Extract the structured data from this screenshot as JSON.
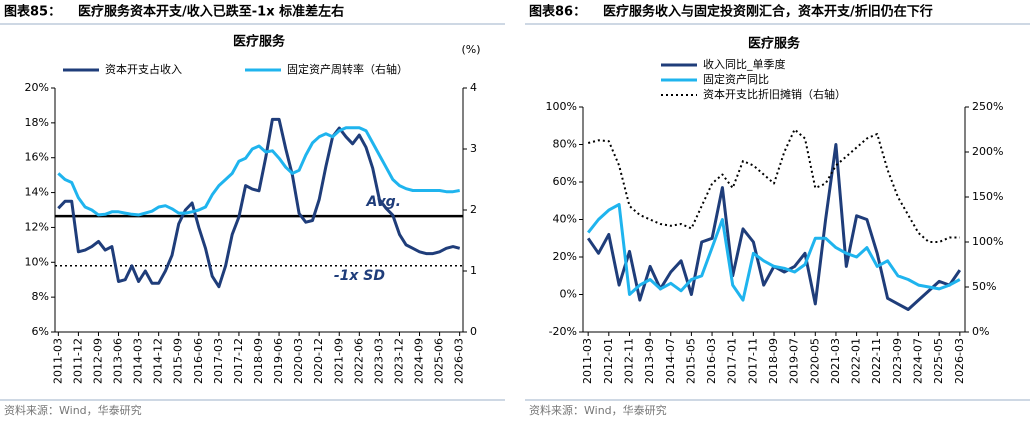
{
  "chart_data": [
    {
      "type": "line",
      "caption_number": "图表85：",
      "caption": "医疗服务资本开支/收入已跌至-1x 标准差左右",
      "title": "医疗服务",
      "source": "资料来源：Wind，华泰研究",
      "y2_label": "(%)",
      "legend": "upper center",
      "categories": [
        "2011-03",
        null,
        null,
        "2011-12",
        null,
        null,
        "2012-09",
        null,
        null,
        "2013-06",
        null,
        null,
        "2014-03",
        null,
        null,
        "2014-12",
        null,
        null,
        "2015-09",
        null,
        null,
        "2016-06",
        null,
        null,
        "2017-03",
        null,
        null,
        "2017-12",
        null,
        null,
        "2018-09",
        null,
        null,
        "2019-06",
        null,
        null,
        "2020-03",
        null,
        null,
        "2020-12",
        null,
        null,
        "2021-09",
        null,
        null,
        "2022-06",
        null,
        null,
        "2023-03",
        null,
        null,
        "2023-12",
        null,
        null,
        "2024-09",
        null,
        null,
        "2025-06",
        null,
        null,
        "2026-03"
      ],
      "series": [
        {
          "name": "资本开支占收入",
          "color": "#1f3d7a",
          "style": "solid",
          "values": [
            13.1,
            13.5,
            13.5,
            10.6,
            10.7,
            10.9,
            11.2,
            10.7,
            10.9,
            8.9,
            9.0,
            9.8,
            8.9,
            9.5,
            8.8,
            8.8,
            9.5,
            10.4,
            12.2,
            13.0,
            13.4,
            12.0,
            10.8,
            9.2,
            8.6,
            9.8,
            11.6,
            12.6,
            14.4,
            14.2,
            14.1,
            16.0,
            18.2,
            18.2,
            16.5,
            15.0,
            12.8,
            12.3,
            12.4,
            13.6,
            15.5,
            17.2,
            17.7,
            17.2,
            16.8,
            17.3,
            16.6,
            15.4,
            13.6,
            13.1,
            12.7,
            11.6,
            11.0,
            10.8,
            10.6,
            10.5,
            10.5,
            10.6,
            10.8,
            10.9,
            10.8
          ]
        },
        {
          "name": "固定资产周转率（右轴）",
          "color": "#1fb4ee",
          "style": "solid",
          "axis": "y2",
          "values": [
            2.6,
            2.5,
            2.45,
            2.2,
            2.05,
            2.0,
            1.92,
            1.93,
            1.97,
            1.97,
            1.95,
            1.93,
            1.92,
            1.95,
            1.98,
            2.05,
            2.07,
            2.02,
            1.95,
            1.95,
            1.97,
            2.0,
            2.05,
            2.25,
            2.4,
            2.5,
            2.6,
            2.8,
            2.85,
            3.0,
            3.05,
            2.95,
            2.97,
            2.85,
            2.7,
            2.6,
            2.65,
            2.9,
            3.1,
            3.2,
            3.25,
            3.2,
            3.3,
            3.35,
            3.35,
            3.35,
            3.3,
            3.1,
            2.9,
            2.7,
            2.5,
            2.4,
            2.35,
            2.32,
            2.32,
            2.32,
            2.32,
            2.32,
            2.3,
            2.3,
            2.32
          ]
        }
      ],
      "reference_lines": [
        {
          "label": "Avg.",
          "value": 12.65,
          "style": "solid"
        },
        {
          "label": "-1x SD",
          "value": 9.8,
          "style": "dotted"
        }
      ],
      "ylim": [
        6,
        20
      ],
      "yticks": [
        {
          "value": 6,
          "label": "6%"
        },
        {
          "value": 8,
          "label": "8%"
        },
        {
          "value": 10,
          "label": "10%"
        },
        {
          "value": 12,
          "label": "12%"
        },
        {
          "value": 14,
          "label": "14%"
        },
        {
          "value": 16,
          "label": "16%"
        },
        {
          "value": 18,
          "label": "18%"
        },
        {
          "value": 20,
          "label": "20%"
        }
      ],
      "y2lim": [
        0,
        4
      ],
      "y2ticks": [
        0,
        1,
        2,
        3,
        4
      ],
      "grid": false
    },
    {
      "type": "line",
      "caption_number": "图表86：",
      "caption": "医疗服务收入与固定投资刚汇合，资本开支/折旧仍在下行",
      "title": "医疗服务",
      "source": "资料来源：Wind，华泰研究",
      "legend": "upper left",
      "categories": [
        "2011-03",
        null,
        "2012-01",
        null,
        "2012-11",
        null,
        "2013-09",
        null,
        "2014-07",
        null,
        "2015-05",
        null,
        "2016-03",
        null,
        "2017-01",
        null,
        "2017-11",
        null,
        "2018-09",
        null,
        "2019-07",
        null,
        "2020-05",
        null,
        "2021-03",
        null,
        "2022-01",
        null,
        "2022-11",
        null,
        "2023-09",
        null,
        "2024-07",
        null,
        "2025-05",
        null,
        "2026-03"
      ],
      "series": [
        {
          "name": "收入同比_单季度",
          "color": "#1f3d7a",
          "style": "solid",
          "values": [
            30,
            22,
            32,
            5,
            23,
            -3,
            15,
            3,
            12,
            18,
            0,
            28,
            30,
            57,
            10,
            35,
            28,
            5,
            15,
            12,
            15,
            22,
            -5,
            40,
            80,
            15,
            42,
            40,
            22,
            -2,
            -5,
            -8,
            -3,
            2,
            7,
            5,
            13
          ]
        },
        {
          "name": "固定资产同比",
          "color": "#1fb4ee",
          "style": "solid",
          "values": [
            33,
            40,
            45,
            48,
            0,
            5,
            8,
            3,
            6,
            2,
            8,
            10,
            25,
            40,
            5,
            -3,
            22,
            18,
            15,
            14,
            12,
            16,
            30,
            30,
            25,
            22,
            20,
            25,
            15,
            18,
            10,
            8,
            5,
            4,
            3,
            5,
            8
          ]
        },
        {
          "name": "资本开支比折旧摊销（右轴）",
          "color": "#000000",
          "style": "dotted",
          "axis": "y2",
          "values": [
            210,
            213,
            212,
            185,
            140,
            130,
            125,
            120,
            118,
            120,
            115,
            140,
            165,
            175,
            160,
            190,
            185,
            175,
            165,
            200,
            225,
            215,
            160,
            165,
            185,
            195,
            205,
            215,
            220,
            180,
            150,
            130,
            110,
            100,
            100,
            105,
            105
          ]
        }
      ],
      "ylim": [
        -20,
        100
      ],
      "yticks": [
        {
          "value": -20,
          "label": "-20%"
        },
        {
          "value": 0,
          "label": "0%"
        },
        {
          "value": 20,
          "label": "20%"
        },
        {
          "value": 40,
          "label": "40%"
        },
        {
          "value": 60,
          "label": "60%"
        },
        {
          "value": 80,
          "label": "80%"
        },
        {
          "value": 100,
          "label": "100%"
        }
      ],
      "y2lim": [
        0,
        250
      ],
      "y2ticks": [
        {
          "value": 0,
          "label": "0%"
        },
        {
          "value": 50,
          "label": "50%"
        },
        {
          "value": 100,
          "label": "100%"
        },
        {
          "value": 150,
          "label": "150%"
        },
        {
          "value": 200,
          "label": "200%"
        },
        {
          "value": 250,
          "label": "250%"
        }
      ],
      "grid": false
    }
  ]
}
